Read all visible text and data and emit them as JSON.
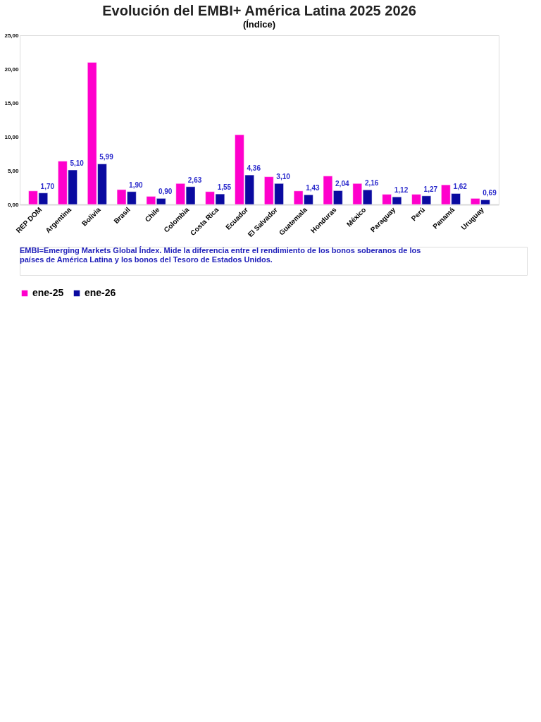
{
  "chart_data": {
    "type": "bar",
    "title": "Evolución del EMBI+ América Latina 2025 2026",
    "subtitle": "(Índice)",
    "categories": [
      "REP DOM",
      "Argentina",
      "Bolivia",
      "Brasil",
      "Chile",
      "Colombia",
      "Costa Rica",
      "Ecuador",
      "El Salvador",
      "Guatemala",
      "Honduras",
      "México",
      "Paraguay",
      "Perú",
      "Panamá",
      "Uruguay"
    ],
    "series": [
      {
        "name": "ene-25",
        "color": "#ff00cc",
        "values": [
          2.0,
          6.4,
          21.0,
          2.2,
          1.2,
          3.1,
          1.9,
          10.3,
          4.1,
          2.0,
          4.2,
          3.1,
          1.5,
          1.5,
          2.9,
          0.9
        ]
      },
      {
        "name": "ene-26",
        "color": "#0a0aa0",
        "values": [
          1.7,
          5.1,
          5.99,
          1.9,
          0.9,
          2.63,
          1.55,
          4.36,
          3.1,
          1.43,
          2.04,
          2.16,
          1.12,
          1.27,
          1.62,
          0.69
        ],
        "value_labels": [
          "1,70",
          "5,10",
          "5,99",
          "1,90",
          "0,90",
          "2,63",
          "1,55",
          "4,36",
          "3,10",
          "1,43",
          "2,04",
          "2,16",
          "1,12",
          "1,27",
          "1,62",
          "0,69"
        ]
      }
    ],
    "ylim": [
      0,
      25
    ],
    "yticks": [
      {
        "value": 0,
        "label": "0,00"
      },
      {
        "value": 5,
        "label": "5,00"
      },
      {
        "value": 10,
        "label": "10,00"
      },
      {
        "value": 15,
        "label": "15,00"
      },
      {
        "value": 20,
        "label": "20,00"
      },
      {
        "value": 25,
        "label": "25,00"
      }
    ],
    "grid": false,
    "legend": "bottom",
    "annotations": [
      "EMBI=Emerging Markets Global Índex. Mide la diferencia entre el rendimiento de los bonos soberanos de los países de América Latina y los bonos del Tesoro de Estados Unidos."
    ]
  }
}
